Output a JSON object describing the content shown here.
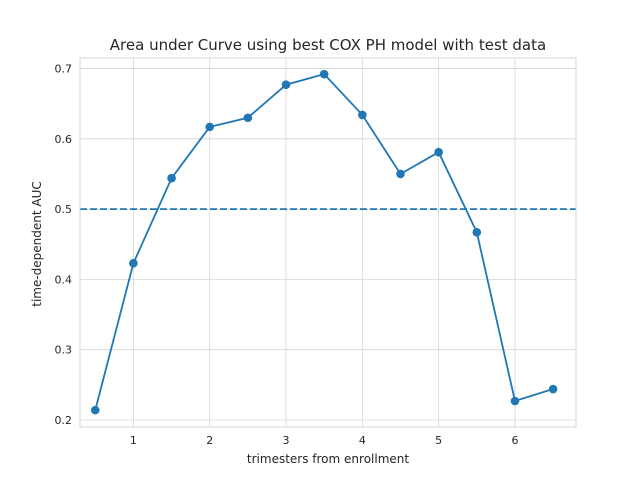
{
  "chart_data": {
    "type": "line",
    "title": "Area under Curve using best COX PH model with test data",
    "xlabel": "trimesters from enrollment",
    "ylabel": "time-dependent AUC",
    "xlim": [
      0.3,
      6.8
    ],
    "ylim": [
      0.19,
      0.715
    ],
    "xticks": [
      1,
      2,
      3,
      4,
      5,
      6
    ],
    "yticks": [
      0.2,
      0.3,
      0.4,
      0.5,
      0.6,
      0.7
    ],
    "xtick_labels": [
      "1",
      "2",
      "3",
      "4",
      "5",
      "6"
    ],
    "ytick_labels": [
      "0.2",
      "0.3",
      "0.4",
      "0.5",
      "0.6",
      "0.7"
    ],
    "grid": true,
    "series": [
      {
        "color": "#1f77b4",
        "marker": "circle",
        "x": [
          0.5,
          1.0,
          1.5,
          2.0,
          2.5,
          3.0,
          3.5,
          4.0,
          4.5,
          5.0,
          5.5,
          6.0,
          6.5
        ],
        "y": [
          0.214,
          0.423,
          0.544,
          0.617,
          0.63,
          0.677,
          0.692,
          0.634,
          0.55,
          0.581,
          0.467,
          0.227,
          0.244
        ]
      }
    ],
    "reference_line": {
      "y": 0.5,
      "style": "dashed",
      "color": "#1f77b4"
    }
  }
}
